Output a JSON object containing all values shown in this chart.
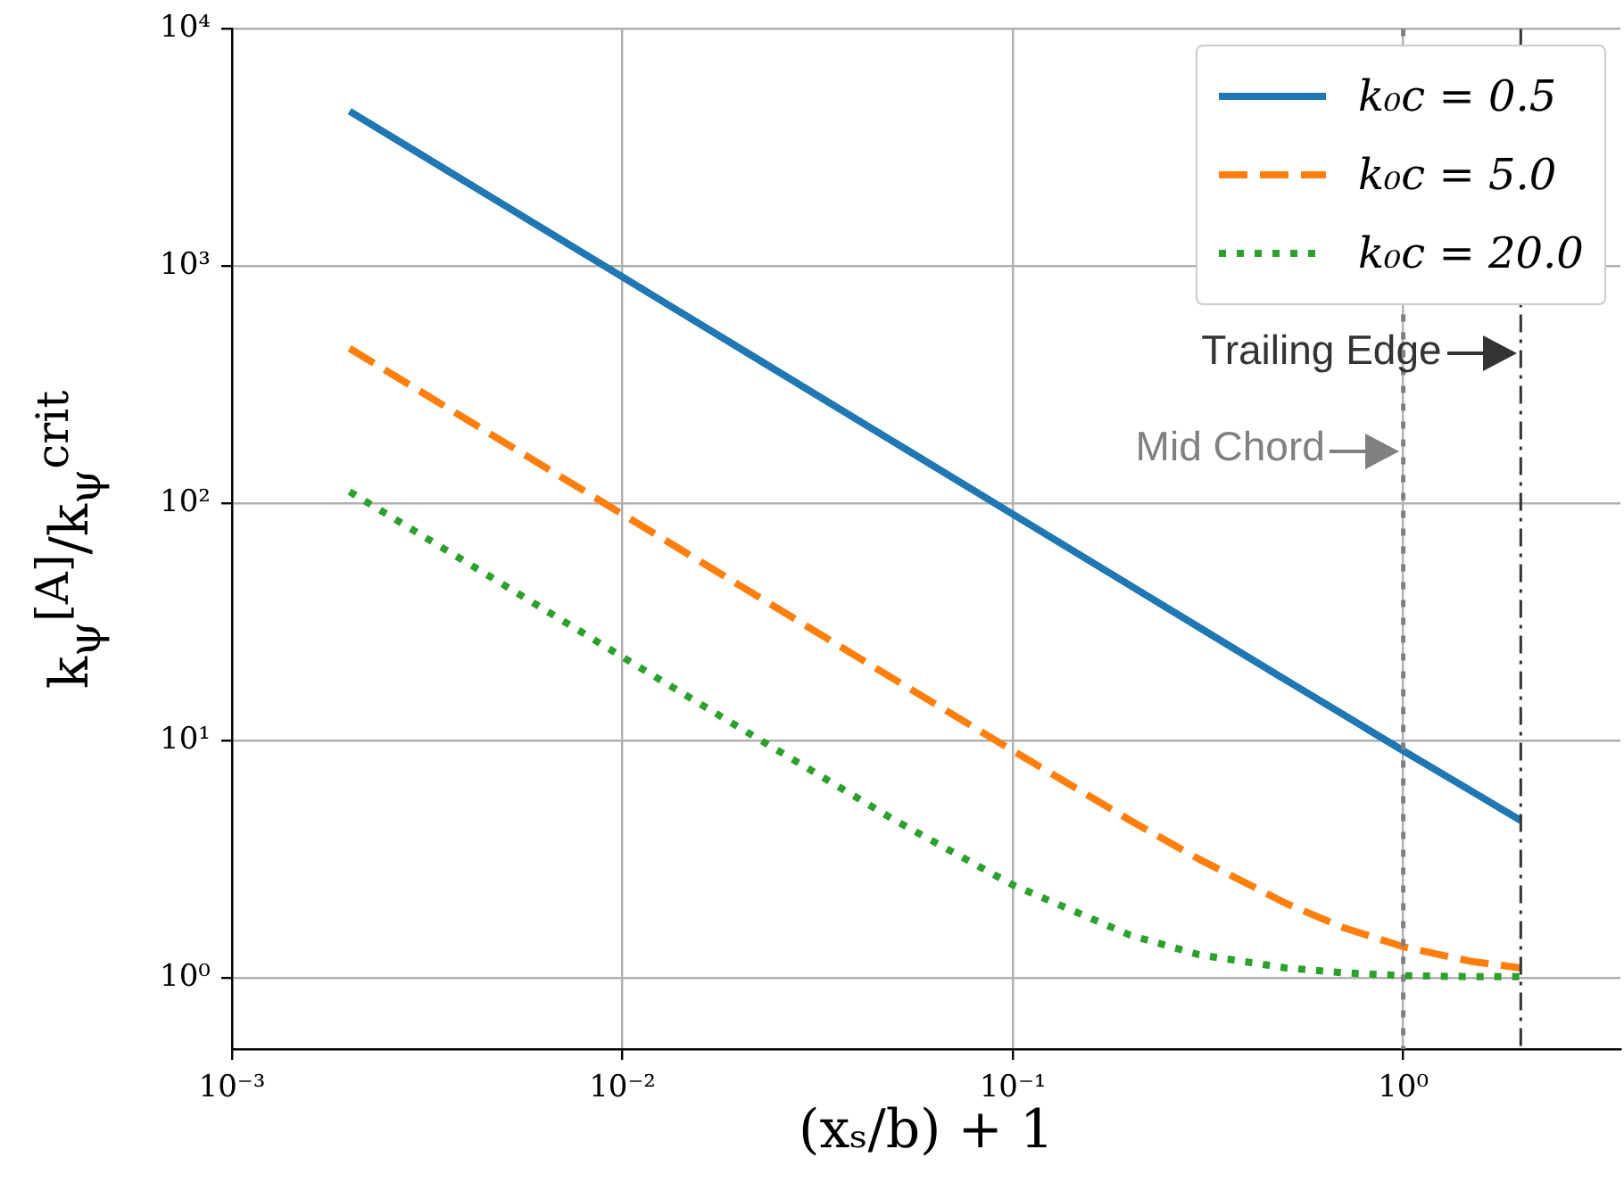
{
  "chart_data": {
    "type": "line",
    "xlabel": "(xₛ/b) + 1",
    "ylabel": "k$_{ψ}$$^{[A]}$/k$_{ψ}$$^{crit}$",
    "x": [
      0.002,
      0.005,
      0.01,
      0.02,
      0.05,
      0.1,
      0.2,
      0.3,
      0.5,
      0.7,
      1,
      1.5,
      2
    ],
    "series": [
      {
        "name": "k₀c = 0.5",
        "color": "#1f77b4",
        "line_style": "solid",
        "values": [
          4500,
          1800,
          900,
          450,
          180,
          90,
          45,
          30,
          18,
          12.9,
          9.06,
          6.1,
          4.6
        ]
      },
      {
        "name": "k₀c = 5.0",
        "color": "#ff7f0e",
        "line_style": "dashed",
        "values": [
          450,
          180,
          90,
          45,
          18,
          9.06,
          4.6,
          3.16,
          2.06,
          1.63,
          1.35,
          1.17,
          1.1
        ]
      },
      {
        "name": "k₀c = 20.0",
        "color": "#2ca02c",
        "line_style": "dotted",
        "values": [
          112,
          45,
          22.5,
          11.3,
          4.6,
          2.46,
          1.51,
          1.25,
          1.1,
          1.05,
          1.02,
          1.01,
          1.01
        ]
      }
    ],
    "log": "xy",
    "xlim": [
      0.001,
      3.6
    ],
    "ylim": [
      0.5,
      10000
    ],
    "xticks": [
      {
        "value": 0.001,
        "label": "10⁻³"
      },
      {
        "value": 0.01,
        "label": "10⁻²"
      },
      {
        "value": 0.1,
        "label": "10⁻¹"
      },
      {
        "value": 1,
        "label": "10⁰"
      }
    ],
    "yticks": [
      {
        "value": 1,
        "label": "10⁰"
      },
      {
        "value": 10,
        "label": "10¹"
      },
      {
        "value": 100,
        "label": "10²"
      },
      {
        "value": 1000,
        "label": "10³"
      },
      {
        "value": 10000,
        "label": "10⁴"
      }
    ],
    "ref_lines": [
      {
        "axis": "x",
        "value": 1,
        "label": "Mid Chord",
        "color": "#808080",
        "line_style": "dotted"
      },
      {
        "axis": "x",
        "value": 2,
        "label": "Trailing Edge",
        "color": "#333333",
        "line_style": "dashdot"
      }
    ],
    "grid": true,
    "legend": "top right"
  }
}
